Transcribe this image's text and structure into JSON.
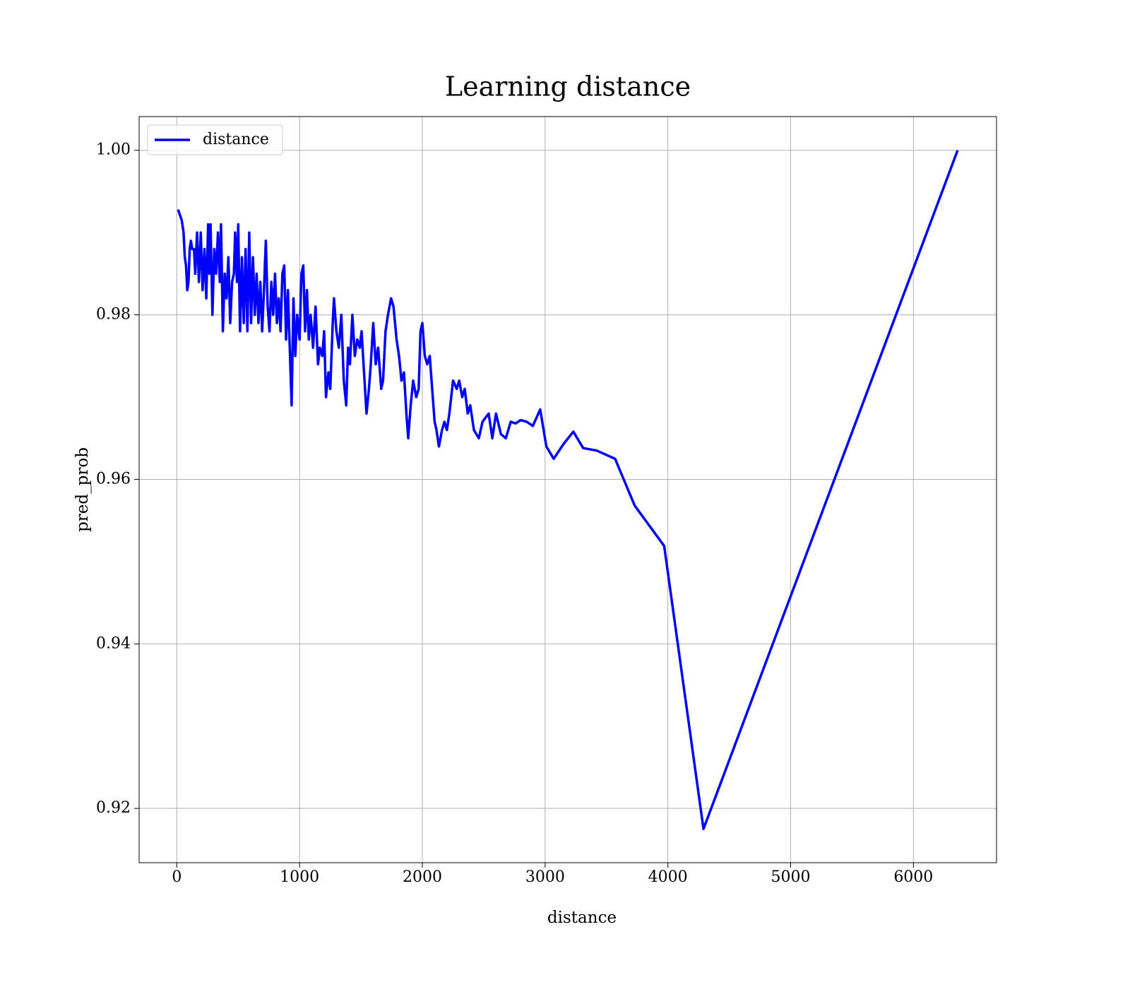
{
  "chart_data": {
    "type": "line",
    "title": "Learning distance",
    "x_label": "distance",
    "y_label": "pred_prob",
    "x": [
      10,
      40,
      55,
      65,
      75,
      85,
      95,
      105,
      115,
      125,
      140,
      150,
      165,
      180,
      195,
      210,
      225,
      240,
      255,
      265,
      275,
      290,
      305,
      320,
      335,
      350,
      360,
      375,
      390,
      405,
      420,
      435,
      450,
      465,
      475,
      490,
      500,
      515,
      530,
      545,
      560,
      575,
      590,
      605,
      620,
      635,
      650,
      665,
      680,
      695,
      710,
      725,
      740,
      755,
      770,
      785,
      800,
      815,
      830,
      845,
      860,
      875,
      890,
      905,
      920,
      935,
      950,
      965,
      980,
      1000,
      1015,
      1030,
      1045,
      1060,
      1075,
      1090,
      1110,
      1130,
      1150,
      1165,
      1185,
      1200,
      1215,
      1235,
      1250,
      1270,
      1280,
      1300,
      1320,
      1340,
      1360,
      1380,
      1395,
      1410,
      1430,
      1450,
      1470,
      1490,
      1505,
      1525,
      1545,
      1565,
      1580,
      1600,
      1620,
      1640,
      1665,
      1680,
      1700,
      1720,
      1745,
      1765,
      1790,
      1810,
      1830,
      1850,
      1870,
      1885,
      1905,
      1925,
      1950,
      1970,
      1985,
      2000,
      2020,
      2040,
      2060,
      2080,
      2100,
      2115,
      2135,
      2160,
      2180,
      2200,
      2220,
      2250,
      2280,
      2300,
      2325,
      2345,
      2370,
      2390,
      2420,
      2460,
      2490,
      2540,
      2570,
      2600,
      2640,
      2680,
      2720,
      2760,
      2800,
      2850,
      2900,
      2960,
      3010,
      3070,
      3150,
      3230,
      3310,
      3420,
      3570,
      3730,
      3970,
      4290,
      6360
    ],
    "series": [
      {
        "name": "distance",
        "color": "#0000ff",
        "values": [
          0.9928,
          0.9915,
          0.99,
          0.987,
          0.986,
          0.983,
          0.984,
          0.988,
          0.989,
          0.988,
          0.988,
          0.985,
          0.99,
          0.984,
          0.99,
          0.983,
          0.988,
          0.982,
          0.991,
          0.985,
          0.991,
          0.98,
          0.988,
          0.985,
          0.99,
          0.984,
          0.991,
          0.978,
          0.985,
          0.982,
          0.987,
          0.979,
          0.984,
          0.985,
          0.99,
          0.984,
          0.991,
          0.978,
          0.987,
          0.979,
          0.988,
          0.978,
          0.99,
          0.979,
          0.987,
          0.98,
          0.985,
          0.979,
          0.984,
          0.978,
          0.983,
          0.989,
          0.981,
          0.978,
          0.984,
          0.98,
          0.985,
          0.979,
          0.982,
          0.978,
          0.985,
          0.986,
          0.977,
          0.983,
          0.976,
          0.969,
          0.982,
          0.975,
          0.98,
          0.977,
          0.985,
          0.986,
          0.978,
          0.983,
          0.977,
          0.98,
          0.976,
          0.981,
          0.974,
          0.976,
          0.975,
          0.978,
          0.97,
          0.973,
          0.971,
          0.979,
          0.982,
          0.978,
          0.976,
          0.98,
          0.972,
          0.969,
          0.976,
          0.974,
          0.98,
          0.975,
          0.977,
          0.976,
          0.978,
          0.973,
          0.968,
          0.971,
          0.974,
          0.979,
          0.974,
          0.976,
          0.971,
          0.972,
          0.978,
          0.98,
          0.982,
          0.981,
          0.977,
          0.975,
          0.972,
          0.973,
          0.968,
          0.965,
          0.969,
          0.972,
          0.97,
          0.971,
          0.978,
          0.979,
          0.975,
          0.974,
          0.975,
          0.971,
          0.967,
          0.966,
          0.964,
          0.966,
          0.967,
          0.966,
          0.968,
          0.972,
          0.971,
          0.972,
          0.97,
          0.971,
          0.968,
          0.969,
          0.966,
          0.965,
          0.967,
          0.968,
          0.965,
          0.968,
          0.9655,
          0.965,
          0.967,
          0.9668,
          0.9672,
          0.967,
          0.9665,
          0.9685,
          0.964,
          0.9625,
          0.9643,
          0.9658,
          0.9638,
          0.9635,
          0.9625,
          0.9568,
          0.9519,
          0.9175,
          1.0
        ]
      }
    ],
    "xlim": [
      -307,
      6677
    ],
    "ylim": [
      0.9134,
      1.0041
    ],
    "xticks": [
      0,
      1000,
      2000,
      3000,
      4000,
      5000,
      6000
    ],
    "yticks": [
      0.92,
      0.94,
      0.96,
      0.98,
      {
        "value": 1,
        "label": "1.00"
      }
    ],
    "grid": true,
    "legend": "upper-left"
  }
}
